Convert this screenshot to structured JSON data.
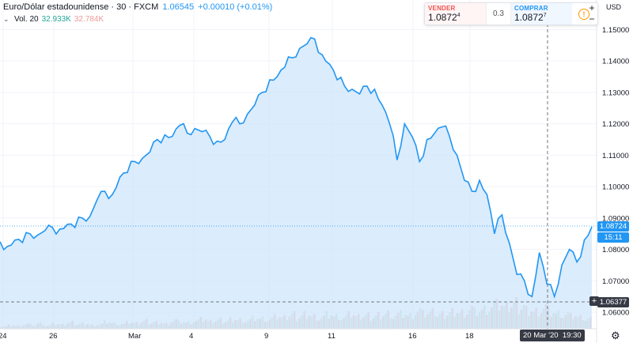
{
  "legend": {
    "symbol": "Euro/Dólar estadounidense · 30 · FXCM",
    "price": "1.06545",
    "change": "+0.00010 (+0.01%)"
  },
  "volume_legend": {
    "label": "Vol. 20",
    "value1": "32.933K",
    "value2": "32.784K"
  },
  "trade": {
    "sell_label": "VENDER",
    "sell_price": "1.0872",
    "sell_sup": "4",
    "spread": "0.3",
    "buy_label": "COMPRAR",
    "buy_price": "1.0872",
    "buy_sup": "7"
  },
  "zoom": {
    "plus": "+",
    "minus": "−"
  },
  "currency": "USD",
  "badges": {
    "last_price": "1.08724",
    "countdown": "15:11",
    "crosshair_price": "1.06377",
    "crosshair_date": "20 Mar '20",
    "crosshair_time": "19:30"
  },
  "colors": {
    "line": "#2196f3",
    "area_fill": "#cfe6fb",
    "vol_up": "#a5d6a7",
    "vol_down": "#ef9a9a"
  },
  "chart_data": {
    "type": "area",
    "x_ticks": [
      "24",
      "26",
      "Mar",
      "4",
      "9",
      "11",
      "16",
      "18"
    ],
    "y_ticks": [
      "1.15000",
      "1.14000",
      "1.13000",
      "1.12000",
      "1.11000",
      "1.10000",
      "1.09000",
      "1.08000",
      "1.07000",
      "1.06000"
    ],
    "ylim": [
      1.0555,
      1.1525
    ],
    "series": [
      {
        "values": [
          1.0825,
          1.081,
          1.083,
          1.0822,
          1.085,
          1.0845,
          1.086,
          1.087,
          1.0865,
          1.088,
          1.087,
          1.09,
          1.0905,
          1.096,
          1.0985,
          1.0975,
          1.103,
          1.1045,
          1.108,
          1.109,
          1.111,
          1.115,
          1.1165,
          1.116,
          1.1195,
          1.117,
          1.1185,
          1.1175,
          1.116,
          1.1145,
          1.115,
          1.1205,
          1.12,
          1.123,
          1.126,
          1.13,
          1.134,
          1.135,
          1.138,
          1.141,
          1.144,
          1.1455,
          1.147,
          1.142,
          1.139,
          1.134,
          1.132,
          1.131,
          1.1295,
          1.132,
          1.131,
          1.126,
          1.12,
          1.1085,
          1.12,
          1.116,
          1.108,
          1.115,
          1.117,
          1.119,
          1.116,
          1.11,
          1.102,
          1.0985,
          1.102,
          1.0975,
          1.085,
          1.091,
          1.082,
          1.072,
          1.07,
          1.065,
          1.079,
          1.069,
          1.065,
          1.075,
          1.08,
          1.076,
          1.083,
          1.0872
        ]
      }
    ],
    "volume_values": [
      3,
      5,
      4,
      6,
      5,
      7,
      4,
      6,
      5,
      8,
      6,
      7,
      5,
      6,
      9,
      7,
      6,
      8,
      7,
      10,
      8,
      9,
      7,
      11,
      9,
      8,
      10,
      12,
      9,
      11,
      10,
      13,
      12,
      11,
      14,
      13,
      12,
      15,
      14,
      18,
      16,
      20,
      17,
      15,
      19,
      16,
      14,
      18,
      15,
      17,
      16,
      19,
      21,
      18,
      20,
      17,
      22,
      19,
      21,
      18,
      20,
      24,
      22,
      26,
      23,
      25,
      28,
      30,
      27,
      32,
      29,
      26,
      24,
      28,
      22,
      20,
      18,
      16,
      14,
      12
    ]
  },
  "right_axis_label": "USD"
}
